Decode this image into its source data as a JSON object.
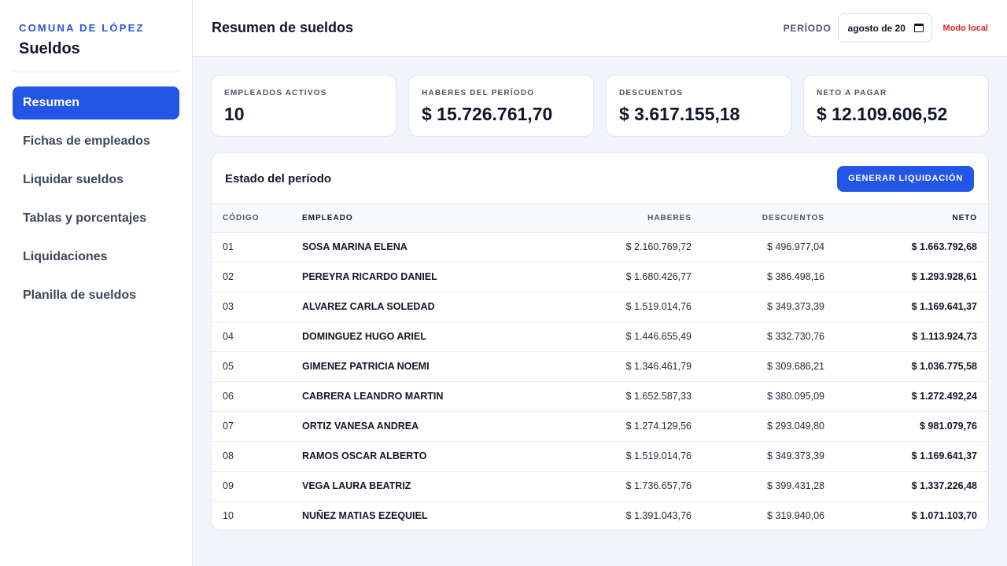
{
  "sidebar": {
    "org": "COMUNA DE LÓPEZ",
    "app_title": "Sueldos",
    "items": [
      {
        "label": "Resumen"
      },
      {
        "label": "Fichas de empleados"
      },
      {
        "label": "Liquidar sueldos"
      },
      {
        "label": "Tablas y porcentajes"
      },
      {
        "label": "Liquidaciones"
      },
      {
        "label": "Planilla de sueldos"
      }
    ]
  },
  "header": {
    "title": "Resumen de sueldos",
    "period_label": "PERÍODO",
    "period_value": "agosto de 20",
    "mode": "Modo local"
  },
  "kpis": [
    {
      "label": "EMPLEADOS ACTIVOS",
      "value": "10"
    },
    {
      "label": "HABERES DEL PERÍODO",
      "value": "$ 15.726.761,70"
    },
    {
      "label": "DESCUENTOS",
      "value": "$ 3.617.155,18"
    },
    {
      "label": "NETO A PAGAR",
      "value": "$ 12.109.606,52"
    }
  ],
  "panel": {
    "title": "Estado del período",
    "button_label": "GENERAR LIQUIDACIÓN",
    "columns": [
      "CÓDIGO",
      "EMPLEADO",
      "HABERES",
      "DESCUENTOS",
      "NETO"
    ],
    "rows": [
      [
        "01",
        "SOSA MARINA ELENA",
        "$ 2.160.769,72",
        "$ 496.977,04",
        "$ 1.663.792,68"
      ],
      [
        "02",
        "PEREYRA RICARDO DANIEL",
        "$ 1.680.426,77",
        "$ 386.498,16",
        "$ 1.293.928,61"
      ],
      [
        "03",
        "ALVAREZ CARLA SOLEDAD",
        "$ 1.519.014,76",
        "$ 349.373,39",
        "$ 1.169.641,37"
      ],
      [
        "04",
        "DOMINGUEZ HUGO ARIEL",
        "$ 1.446.655,49",
        "$ 332.730,76",
        "$ 1.113.924,73"
      ],
      [
        "05",
        "GIMENEZ PATRICIA NOEMI",
        "$ 1.346.461,79",
        "$ 309.686,21",
        "$ 1.036.775,58"
      ],
      [
        "06",
        "CABRERA LEANDRO MARTIN",
        "$ 1.652.587,33",
        "$ 380.095,09",
        "$ 1.272.492,24"
      ],
      [
        "07",
        "ORTIZ VANESA ANDREA",
        "$ 1.274.129,56",
        "$ 293.049,80",
        "$ 981.079,76"
      ],
      [
        "08",
        "RAMOS OSCAR ALBERTO",
        "$ 1.519.014,76",
        "$ 349.373,39",
        "$ 1.169.641,37"
      ],
      [
        "09",
        "VEGA LAURA BEATRIZ",
        "$ 1.736.657,76",
        "$ 399.431,28",
        "$ 1.337.226,48"
      ],
      [
        "10",
        "NUÑEZ MATIAS EZEQUIEL",
        "$ 1.391.043,76",
        "$ 319.940,06",
        "$ 1.071.103,70"
      ]
    ]
  },
  "colors": {
    "accent": "#2356e6",
    "brand_text": "#2456d9",
    "warning": "#dc2626"
  },
  "icons": {
    "period_picker": "calendar-icon"
  }
}
